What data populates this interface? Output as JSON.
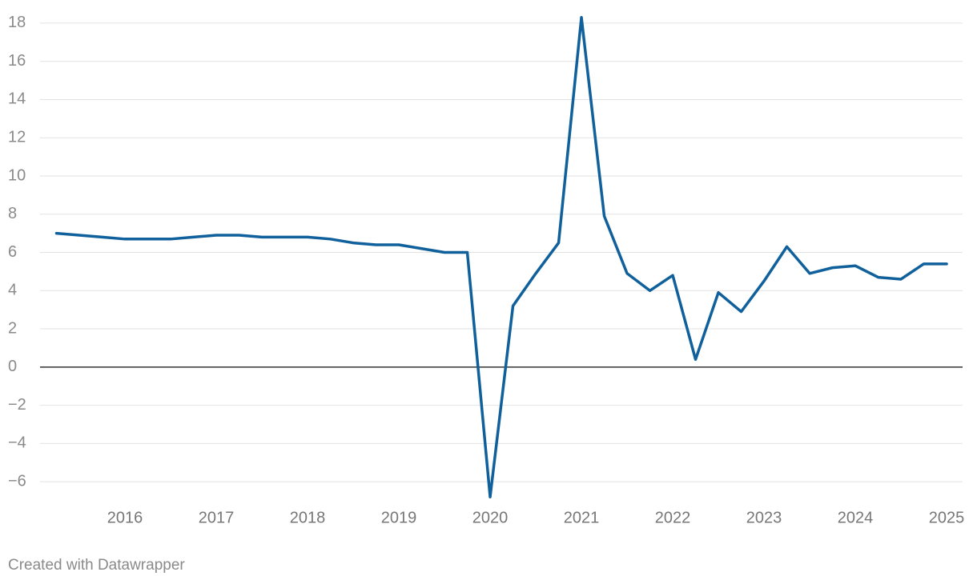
{
  "chart_data": {
    "type": "line",
    "x": [
      2015.25,
      2015.5,
      2015.75,
      2016,
      2016.25,
      2016.5,
      2016.75,
      2017,
      2017.25,
      2017.5,
      2017.75,
      2018,
      2018.25,
      2018.5,
      2018.75,
      2019,
      2019.25,
      2019.5,
      2019.75,
      2020,
      2020.25,
      2020.5,
      2020.75,
      2021,
      2021.25,
      2021.5,
      2021.75,
      2022,
      2022.25,
      2022.5,
      2022.75,
      2023,
      2023.25,
      2023.5,
      2023.75,
      2024,
      2024.25,
      2024.5,
      2024.75,
      2025
    ],
    "values": [
      7.0,
      6.9,
      6.8,
      6.7,
      6.7,
      6.7,
      6.8,
      6.9,
      6.9,
      6.8,
      6.8,
      6.8,
      6.7,
      6.5,
      6.4,
      6.4,
      6.2,
      6.0,
      6.0,
      -6.8,
      3.2,
      4.9,
      6.5,
      18.3,
      7.9,
      4.9,
      4.0,
      4.8,
      0.4,
      3.9,
      2.9,
      4.5,
      6.3,
      4.9,
      5.2,
      5.3,
      4.7,
      4.6,
      5.4,
      5.4
    ],
    "color": "#10609c",
    "xlim": [
      2015.07,
      2025.175
    ],
    "xticks": [
      2016,
      2017,
      2018,
      2019,
      2020,
      2021,
      2022,
      2023,
      2024,
      2025
    ],
    "ylim": [
      -7,
      18.6
    ],
    "yticks": [
      {
        "value": -6,
        "label": "−6"
      },
      {
        "value": -4,
        "label": "−4"
      },
      {
        "value": -2,
        "label": "−2"
      },
      0,
      2,
      4,
      6,
      8,
      10,
      12,
      14,
      16,
      18
    ],
    "grid": true,
    "credit": "Created with Datawrapper"
  }
}
